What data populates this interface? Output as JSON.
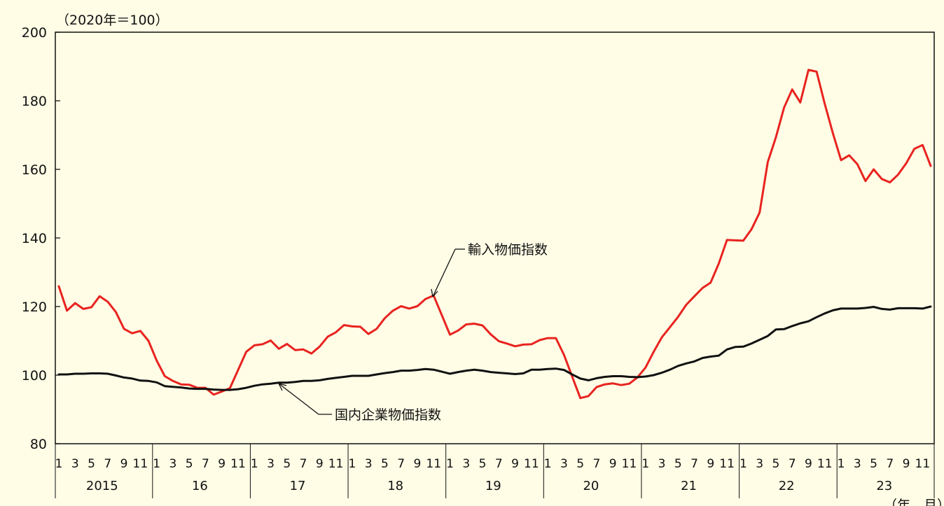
{
  "chart_data": {
    "type": "line",
    "unit_label": "（2020年＝100）",
    "x_unit_label": "（年、月）",
    "ylim": [
      80,
      200
    ],
    "yticks": [
      80,
      100,
      120,
      140,
      160,
      180,
      200
    ],
    "grid": false,
    "start": "2015-01",
    "months": 108,
    "month_tick_labels": [
      "1",
      "3",
      "5",
      "7",
      "9",
      "11"
    ],
    "year_labels": [
      "2015",
      "16",
      "17",
      "18",
      "19",
      "20",
      "21",
      "22",
      "23"
    ],
    "series": [
      {
        "name": "輸入物価指数",
        "color": "#e8231f",
        "values": [
          125.9,
          118.8,
          121.0,
          119.3,
          119.8,
          123.0,
          121.4,
          118.4,
          113.5,
          112.2,
          112.9,
          110.0,
          104.3,
          99.7,
          98.3,
          97.3,
          97.2,
          96.3,
          96.3,
          94.3,
          95.2,
          96.2,
          101.5,
          106.8,
          108.7,
          109.0,
          110.1,
          107.7,
          109.1,
          107.3,
          107.5,
          106.3,
          108.3,
          111.2,
          112.5,
          114.6,
          114.2,
          114.1,
          112.0,
          113.5,
          116.6,
          118.8,
          120.1,
          119.4,
          120.1,
          122.2,
          123.2,
          117.5,
          111.8,
          113.0,
          114.8,
          115.0,
          114.5,
          111.9,
          109.9,
          109.2,
          108.4,
          108.9,
          109.0,
          110.2,
          110.8,
          110.8,
          105.9,
          99.6,
          93.3,
          93.9,
          96.5,
          97.3,
          97.6,
          97.1,
          97.5,
          99.3,
          102.2,
          106.8,
          111.0,
          114.0,
          117.0,
          120.5,
          123.0,
          125.4,
          127.0,
          132.6,
          139.4,
          139.3,
          139.2,
          142.5,
          147.4,
          162.1,
          169.3,
          178.0,
          183.3,
          179.5,
          189.0,
          188.5,
          179.1,
          170.5,
          162.7,
          164.1,
          161.5,
          156.6,
          160.0,
          157.2,
          156.2,
          158.5,
          161.8,
          166.0,
          167.1,
          161.0
        ]
      },
      {
        "name": "国内企業物価指数",
        "color": "#111111",
        "values": [
          100.2,
          100.2,
          100.4,
          100.4,
          100.5,
          100.5,
          100.4,
          99.9,
          99.3,
          99.0,
          98.4,
          98.3,
          97.9,
          96.8,
          96.6,
          96.4,
          96.1,
          96.0,
          96.0,
          95.8,
          95.7,
          95.7,
          95.9,
          96.3,
          96.9,
          97.3,
          97.5,
          97.8,
          97.8,
          98.0,
          98.3,
          98.3,
          98.5,
          98.9,
          99.2,
          99.5,
          99.8,
          99.8,
          99.8,
          100.2,
          100.6,
          100.9,
          101.3,
          101.3,
          101.5,
          101.8,
          101.6,
          101.0,
          100.4,
          100.9,
          101.3,
          101.6,
          101.3,
          100.9,
          100.7,
          100.5,
          100.3,
          100.5,
          101.6,
          101.6,
          101.8,
          101.9,
          101.5,
          100.2,
          99.0,
          98.5,
          99.1,
          99.5,
          99.7,
          99.7,
          99.5,
          99.4,
          99.6,
          100.0,
          100.7,
          101.6,
          102.7,
          103.4,
          104.0,
          105.0,
          105.4,
          105.7,
          107.5,
          108.2,
          108.3,
          109.2,
          110.3,
          111.4,
          113.3,
          113.4,
          114.3,
          115.1,
          115.7,
          116.9,
          118.0,
          118.9,
          119.4,
          119.4,
          119.4,
          119.6,
          119.9,
          119.3,
          119.1,
          119.5,
          119.5,
          119.5,
          119.4,
          120.0
        ]
      }
    ],
    "annotations": [
      {
        "text": "輸入物価指数",
        "target_series": 0
      },
      {
        "text": "国内企業物価指数",
        "target_series": 1
      }
    ]
  }
}
